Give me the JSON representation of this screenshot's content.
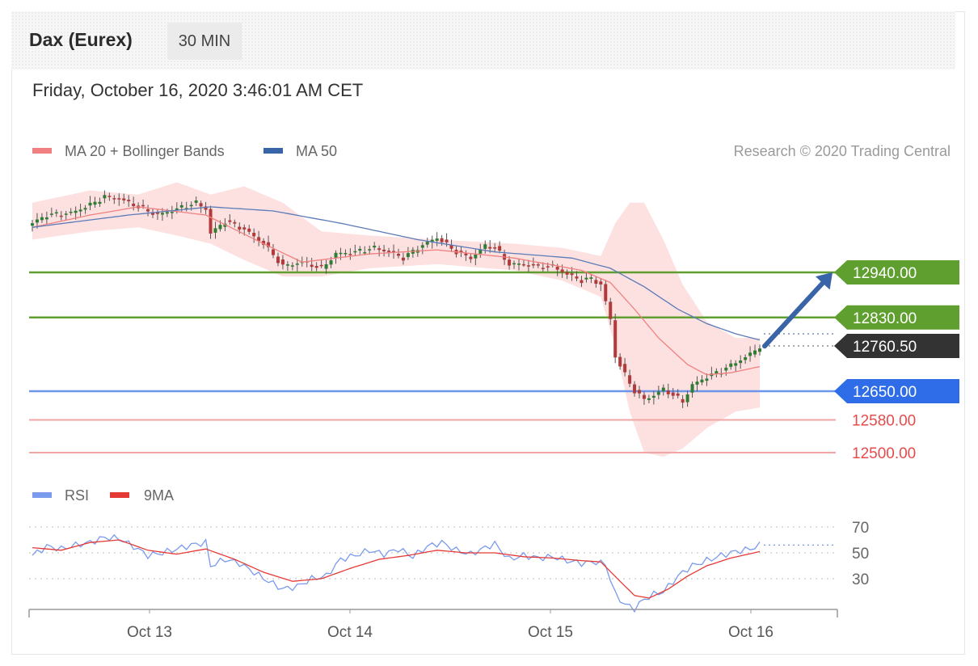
{
  "header": {
    "title": "Dax (Eurex)",
    "timeframe": "30 MIN",
    "datetime": "Friday, October 16, 2020 3:46:01 AM CET"
  },
  "legend": {
    "ma20_label": "MA 20 + Bollinger Bands",
    "ma50_label": "MA 50",
    "copyright": "Research © 2020 Trading Central",
    "rsi_label": "RSI",
    "rsi_ma_label": "9MA"
  },
  "colors": {
    "resistance": "#5f9f2f",
    "support": "#6d95ea",
    "support_label": "#2f6de8",
    "target": "#e44c4c",
    "target_line": "#f2a5a5",
    "current": "#333333",
    "candle_up": "#2e7d32",
    "candle_down": "#b23a3a",
    "ma20": "#f08080",
    "ma50": "#5b7bb8",
    "bollinger_fill": "#fde1e1",
    "rsi": "#7a9aee",
    "rsi_ma": "#e53935",
    "arrow": "#3a64a8"
  },
  "chart_data": [
    {
      "type": "candlestick",
      "interval": "30 MIN",
      "x_labels": [
        "Oct 13",
        "Oct 14",
        "Oct 15",
        "Oct 16"
      ],
      "ylim": [
        12470,
        13160
      ],
      "levels": [
        {
          "value": 12940.0,
          "label": "12940.00",
          "kind": "resistance"
        },
        {
          "value": 12830.0,
          "label": "12830.00",
          "kind": "resistance"
        },
        {
          "value": 12760.5,
          "label": "12760.50",
          "kind": "current"
        },
        {
          "value": 12650.0,
          "label": "12650.00",
          "kind": "support"
        },
        {
          "value": 12580.0,
          "label": "12580.00",
          "kind": "target"
        },
        {
          "value": 12500.0,
          "label": "12500.00",
          "kind": "target"
        }
      ],
      "close_anchors": [
        [
          0,
          13060
        ],
        [
          3,
          13080
        ],
        [
          8,
          13085
        ],
        [
          12,
          13105
        ],
        [
          15,
          13125
        ],
        [
          18,
          13120
        ],
        [
          22,
          13100
        ],
        [
          26,
          13080
        ],
        [
          30,
          13095
        ],
        [
          34,
          13110
        ],
        [
          36,
          13095
        ],
        [
          37,
          13035
        ],
        [
          40,
          13065
        ],
        [
          44,
          13045
        ],
        [
          48,
          13010
        ],
        [
          52,
          12955
        ],
        [
          56,
          12965
        ],
        [
          60,
          12950
        ],
        [
          63,
          12985
        ],
        [
          67,
          12990
        ],
        [
          71,
          13000
        ],
        [
          74,
          12990
        ],
        [
          77,
          12975
        ],
        [
          80,
          13000
        ],
        [
          84,
          13025
        ],
        [
          88,
          12990
        ],
        [
          91,
          12975
        ],
        [
          94,
          13005
        ],
        [
          96,
          13000
        ],
        [
          99,
          12960
        ],
        [
          102,
          12960
        ],
        [
          105,
          12955
        ],
        [
          108,
          12955
        ],
        [
          111,
          12935
        ],
        [
          114,
          12920
        ],
        [
          116,
          12925
        ],
        [
          118,
          12910
        ],
        [
          120,
          12825
        ],
        [
          121,
          12735
        ],
        [
          123,
          12690
        ],
        [
          125,
          12650
        ],
        [
          127,
          12630
        ],
        [
          129,
          12640
        ],
        [
          131,
          12655
        ],
        [
          133,
          12640
        ],
        [
          135,
          12625
        ],
        [
          137,
          12665
        ],
        [
          140,
          12685
        ],
        [
          143,
          12700
        ],
        [
          146,
          12720
        ],
        [
          149,
          12740
        ],
        [
          151,
          12760
        ]
      ],
      "ma20_anchors": [
        [
          0,
          13050
        ],
        [
          12,
          13080
        ],
        [
          22,
          13100
        ],
        [
          36,
          13080
        ],
        [
          48,
          13010
        ],
        [
          56,
          12965
        ],
        [
          70,
          12985
        ],
        [
          84,
          12995
        ],
        [
          100,
          12975
        ],
        [
          114,
          12945
        ],
        [
          120,
          12915
        ],
        [
          125,
          12850
        ],
        [
          130,
          12780
        ],
        [
          136,
          12715
        ],
        [
          140,
          12690
        ],
        [
          145,
          12695
        ],
        [
          151,
          12710
        ]
      ],
      "ma50_anchors": [
        [
          0,
          13050
        ],
        [
          20,
          13080
        ],
        [
          37,
          13100
        ],
        [
          50,
          13090
        ],
        [
          64,
          13060
        ],
        [
          80,
          13020
        ],
        [
          96,
          12990
        ],
        [
          112,
          12975
        ],
        [
          120,
          12950
        ],
        [
          127,
          12905
        ],
        [
          134,
          12850
        ],
        [
          140,
          12815
        ],
        [
          146,
          12790
        ],
        [
          151,
          12775
        ]
      ],
      "bollinger_upper_anchors": [
        [
          0,
          13110
        ],
        [
          12,
          13140
        ],
        [
          22,
          13130
        ],
        [
          30,
          13160
        ],
        [
          37,
          13130
        ],
        [
          44,
          13150
        ],
        [
          52,
          13110
        ],
        [
          60,
          13040
        ],
        [
          70,
          13030
        ],
        [
          84,
          13020
        ],
        [
          100,
          13010
        ],
        [
          110,
          13000
        ],
        [
          118,
          12980
        ],
        [
          121,
          13060
        ],
        [
          124,
          13110
        ],
        [
          127,
          13110
        ],
        [
          131,
          13020
        ],
        [
          135,
          12910
        ],
        [
          140,
          12820
        ],
        [
          146,
          12780
        ],
        [
          151,
          12780
        ]
      ],
      "bollinger_lower_anchors": [
        [
          0,
          13020
        ],
        [
          12,
          13040
        ],
        [
          22,
          13050
        ],
        [
          30,
          13030
        ],
        [
          37,
          13010
        ],
        [
          44,
          12970
        ],
        [
          52,
          12930
        ],
        [
          60,
          12930
        ],
        [
          70,
          12950
        ],
        [
          84,
          12960
        ],
        [
          100,
          12945
        ],
        [
          110,
          12920
        ],
        [
          118,
          12880
        ],
        [
          121,
          12760
        ],
        [
          124,
          12600
        ],
        [
          127,
          12500
        ],
        [
          131,
          12490
        ],
        [
          135,
          12510
        ],
        [
          140,
          12560
        ],
        [
          146,
          12600
        ],
        [
          151,
          12610
        ]
      ],
      "projection_target": 12940.0
    },
    {
      "type": "line",
      "name": "RSI",
      "yticks": [
        70,
        50,
        30
      ],
      "rsi_anchors": [
        [
          0,
          48
        ],
        [
          3,
          55
        ],
        [
          6,
          53
        ],
        [
          9,
          56
        ],
        [
          12,
          58
        ],
        [
          15,
          62
        ],
        [
          18,
          61
        ],
        [
          21,
          55
        ],
        [
          24,
          48
        ],
        [
          27,
          50
        ],
        [
          30,
          53
        ],
        [
          33,
          56
        ],
        [
          36,
          58
        ],
        [
          37,
          40
        ],
        [
          40,
          45
        ],
        [
          43,
          42
        ],
        [
          46,
          35
        ],
        [
          49,
          28
        ],
        [
          52,
          22
        ],
        [
          55,
          24
        ],
        [
          58,
          30
        ],
        [
          61,
          32
        ],
        [
          64,
          45
        ],
        [
          67,
          48
        ],
        [
          70,
          52
        ],
        [
          73,
          49
        ],
        [
          76,
          53
        ],
        [
          79,
          47
        ],
        [
          82,
          55
        ],
        [
          85,
          58
        ],
        [
          88,
          52
        ],
        [
          91,
          49
        ],
        [
          94,
          54
        ],
        [
          96,
          57
        ],
        [
          99,
          45
        ],
        [
          102,
          48
        ],
        [
          105,
          46
        ],
        [
          108,
          47
        ],
        [
          111,
          44
        ],
        [
          114,
          42
        ],
        [
          117,
          43
        ],
        [
          119,
          41
        ],
        [
          121,
          18
        ],
        [
          123,
          10
        ],
        [
          125,
          7
        ],
        [
          127,
          14
        ],
        [
          129,
          18
        ],
        [
          131,
          20
        ],
        [
          133,
          28
        ],
        [
          135,
          35
        ],
        [
          137,
          40
        ],
        [
          140,
          44
        ],
        [
          143,
          48
        ],
        [
          146,
          51
        ],
        [
          149,
          53
        ],
        [
          151,
          56
        ]
      ],
      "rsi_ma_anchors": [
        [
          0,
          54
        ],
        [
          6,
          52
        ],
        [
          12,
          58
        ],
        [
          18,
          60
        ],
        [
          24,
          52
        ],
        [
          30,
          49
        ],
        [
          36,
          53
        ],
        [
          42,
          45
        ],
        [
          48,
          35
        ],
        [
          54,
          28
        ],
        [
          60,
          30
        ],
        [
          66,
          38
        ],
        [
          72,
          45
        ],
        [
          78,
          48
        ],
        [
          84,
          52
        ],
        [
          90,
          50
        ],
        [
          96,
          50
        ],
        [
          102,
          47
        ],
        [
          108,
          46
        ],
        [
          114,
          44
        ],
        [
          118,
          43
        ],
        [
          122,
          28
        ],
        [
          125,
          17
        ],
        [
          128,
          15
        ],
        [
          132,
          22
        ],
        [
          136,
          32
        ],
        [
          140,
          40
        ],
        [
          145,
          46
        ],
        [
          151,
          51
        ]
      ],
      "last_value": 56
    }
  ]
}
